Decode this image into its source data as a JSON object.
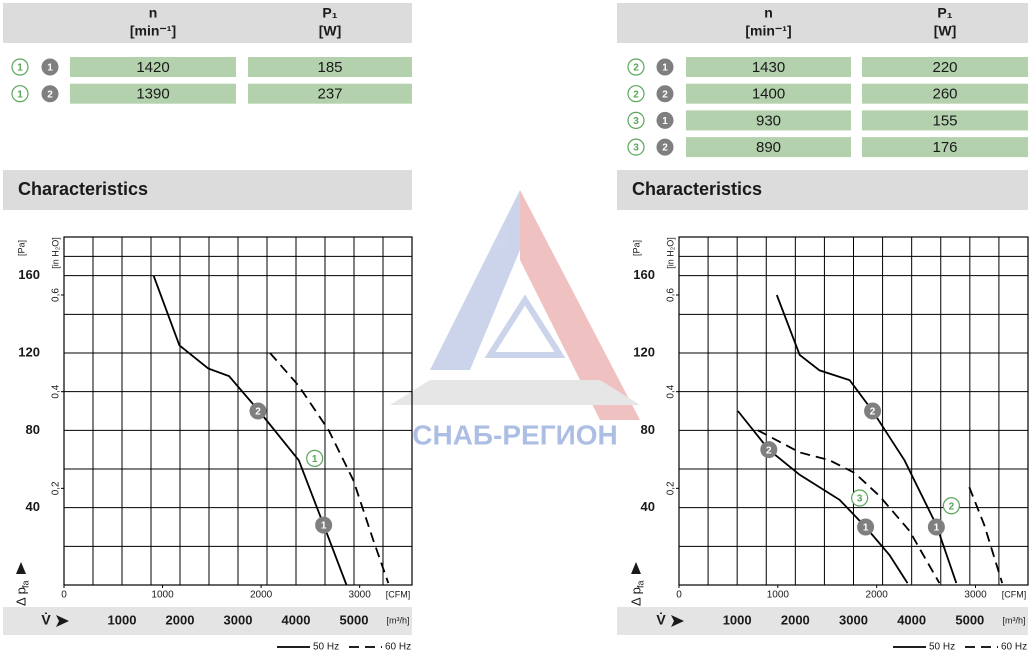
{
  "tables": [
    {
      "columns": [
        {
          "symbol": "n",
          "unit": "[min⁻¹]"
        },
        {
          "symbol": "P₁",
          "unit": "[W]"
        }
      ],
      "rows": [
        [
          "1",
          "1",
          "1420",
          "185"
        ],
        [
          "1",
          "2",
          "1390",
          "237"
        ]
      ]
    },
    {
      "columns": [
        {
          "symbol": "n",
          "unit": "[min⁻¹]"
        },
        {
          "symbol": "P₁",
          "unit": "[W]"
        }
      ],
      "rows": [
        [
          "2",
          "1",
          "1430",
          "220"
        ],
        [
          "2",
          "2",
          "1400",
          "260"
        ],
        [
          "3",
          "1",
          "930",
          "155"
        ],
        [
          "3",
          "2",
          "890",
          "176"
        ]
      ]
    }
  ],
  "watermark": "СНАБ-РЕГИОН",
  "chart_data": [
    {
      "type": "line",
      "title": "Characteristics",
      "xlabel": "[m³/h]",
      "x2label": "[CFM]",
      "ylabel": "[Pa]",
      "y2label": "[in H₂O]",
      "y_symbol": "Δ p",
      "y_subscript": "fa",
      "x_symbol": "V̇",
      "xlim": [
        0,
        6000
      ],
      "xticks": [
        1000,
        2000,
        3000,
        4000,
        5000
      ],
      "x2lim": [
        0,
        3531
      ],
      "x2ticks": [
        0,
        1000,
        2000,
        3000
      ],
      "ylim": [
        0,
        180
      ],
      "yticks": [
        40,
        80,
        120,
        160
      ],
      "y2lim": [
        0,
        0.72
      ],
      "y2ticks": [
        {
          "value": 0.2,
          "label": "0,2"
        },
        {
          "value": 0.4,
          "label": "0,4"
        },
        {
          "value": 0.6,
          "label": "0,6"
        }
      ],
      "grid": true,
      "series": [
        {
          "name": "50 Hz",
          "color": "#000000",
          "style": "solid",
          "x": [
            1544,
            1990,
            2487,
            2847,
            3362,
            4048,
            4477,
            4871
          ],
          "values": [
            160,
            124,
            112,
            108,
            90,
            64.5,
            31,
            0
          ]
        },
        {
          "name": "60 Hz",
          "color": "#000000",
          "style": "dashed",
          "x": [
            3551,
            4048,
            4563,
            4991,
            5334,
            5592
          ],
          "values": [
            120,
            103,
            80,
            54,
            23,
            1
          ]
        }
      ],
      "points": [
        {
          "label": "2",
          "kind": "operating",
          "x": 3345,
          "y": 90
        },
        {
          "label": "1",
          "kind": "curve",
          "x": 4322,
          "y": 65.5
        },
        {
          "label": "1",
          "kind": "operating",
          "x": 4477,
          "y": 31
        }
      ]
    },
    {
      "type": "line",
      "title": "Characteristics",
      "xlabel": "[m³/h]",
      "x2label": "[CFM]",
      "ylabel": "[Pa]",
      "y2label": "[in H₂O]",
      "y_symbol": "Δ p",
      "y_subscript": "fa",
      "x_symbol": "V̇",
      "xlim": [
        0,
        6000
      ],
      "xticks": [
        1000,
        2000,
        3000,
        4000,
        5000
      ],
      "x2lim": [
        0,
        3531
      ],
      "x2ticks": [
        0,
        1000,
        2000,
        3000
      ],
      "ylim": [
        0,
        180
      ],
      "yticks": [
        40,
        80,
        120,
        160
      ],
      "y2lim": [
        0,
        0.72
      ],
      "y2ticks": [
        {
          "value": 0.2,
          "label": "0,2"
        },
        {
          "value": 0.4,
          "label": "0,4"
        },
        {
          "value": 0.6,
          "label": "0,6"
        }
      ],
      "grid": true,
      "series": [
        {
          "name": "50 Hz",
          "color": "#000000",
          "style": "solid",
          "x": [
            1681,
            2075,
            2418,
            2933,
            3328,
            3877,
            4425,
            4768
          ],
          "values": [
            150,
            119,
            111,
            106,
            90,
            64.5,
            31,
            1
          ]
        },
        {
          "name": "50 Hz",
          "color": "#000000",
          "style": "solid",
          "x": [
            1012,
            1544,
            2075,
            2762,
            3208,
            3619,
            3928
          ],
          "values": [
            90,
            70,
            57,
            44,
            30,
            15.5,
            1
          ]
        },
        {
          "name": "60 Hz",
          "color": "#000000",
          "style": "dashed",
          "x": [
            1355,
            2075,
            2590,
            3019,
            3448,
            3962,
            4477
          ],
          "values": [
            80,
            68.6,
            64.5,
            58,
            46,
            28,
            1
          ]
        },
        {
          "name": "60 Hz",
          "color": "#000000",
          "style": "dashed",
          "x": [
            4991,
            5249,
            5557
          ],
          "values": [
            50.6,
            31,
            1
          ]
        }
      ],
      "points": [
        {
          "label": "2",
          "kind": "operating",
          "x": 3328,
          "y": 90
        },
        {
          "label": "2",
          "kind": "operating",
          "x": 1544,
          "y": 70
        },
        {
          "label": "1",
          "kind": "operating",
          "x": 3208,
          "y": 30
        },
        {
          "label": "1",
          "kind": "operating",
          "x": 4425,
          "y": 30
        },
        {
          "label": "3",
          "kind": "curve",
          "x": 3105,
          "y": 45
        },
        {
          "label": "2",
          "kind": "curve",
          "x": 4683,
          "y": 41
        }
      ]
    }
  ]
}
